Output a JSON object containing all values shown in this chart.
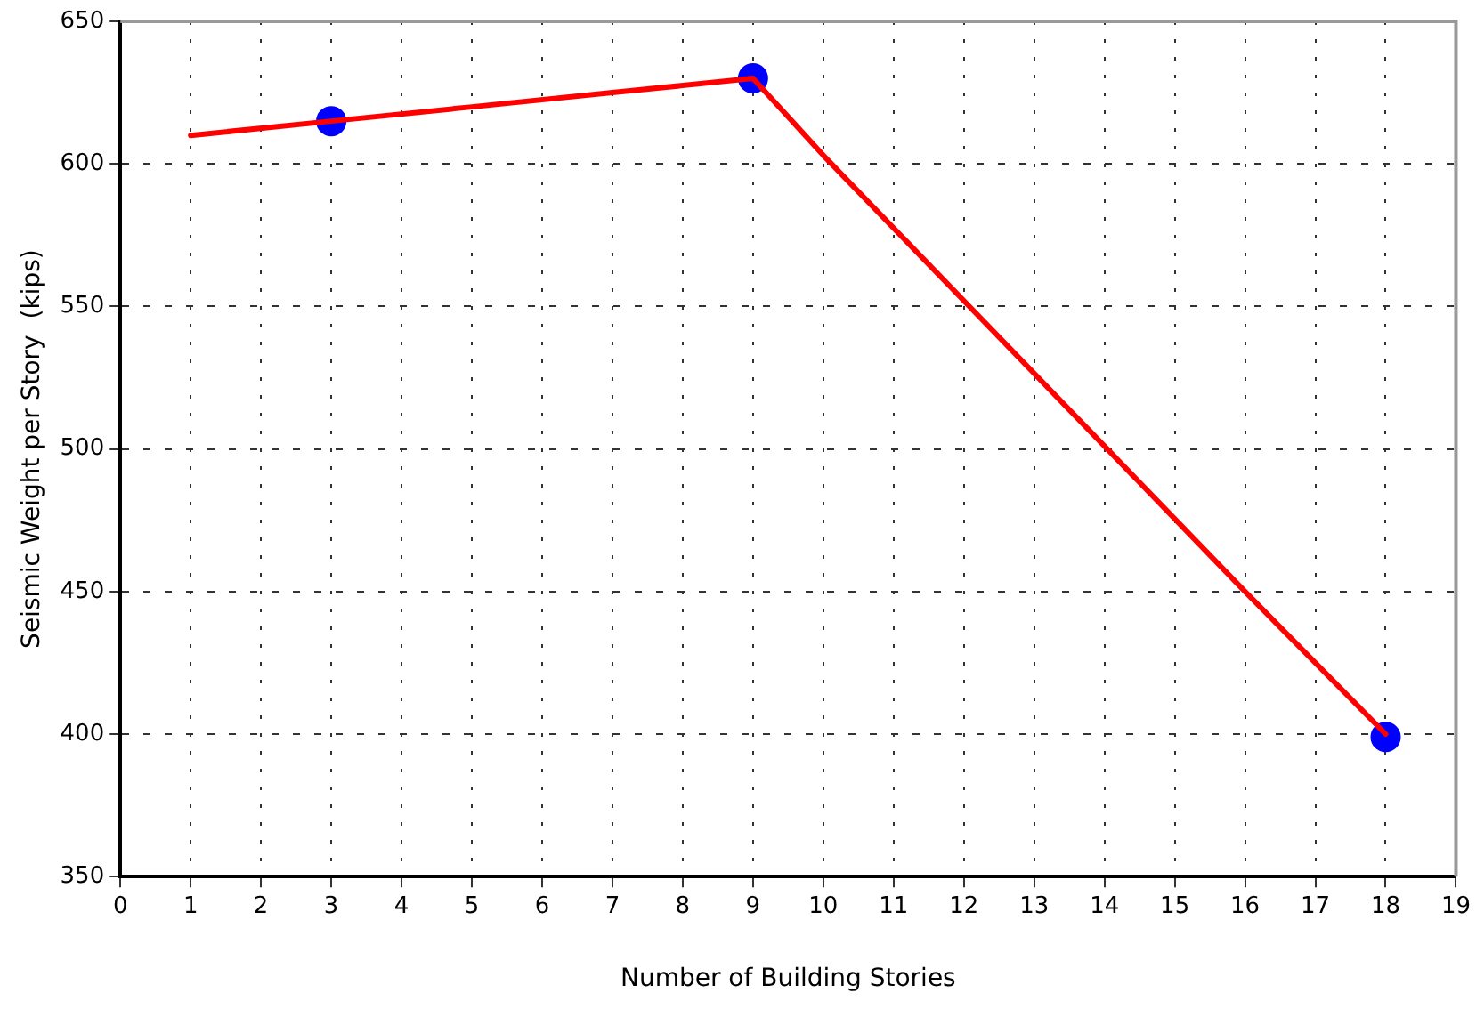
{
  "chart_data": {
    "type": "line",
    "xlabel": "Number of Building Stories",
    "ylabel": "Seismic Weight per Story  (kips)",
    "series": [
      {
        "type": "line",
        "color": "#ff0000",
        "marker": "none",
        "x": [
          1,
          3,
          5,
          7,
          9,
          10,
          12,
          14,
          16,
          18
        ],
        "values": [
          610,
          615,
          620,
          625,
          630,
          603,
          552,
          501,
          450,
          400
        ]
      },
      {
        "type": "scatter",
        "color": "#0000ff",
        "marker": "circle",
        "x": [
          3,
          9,
          18
        ],
        "values": [
          615,
          630,
          399
        ]
      }
    ],
    "xlim": [
      0,
      19
    ],
    "xticks": [
      0,
      1,
      2,
      3,
      4,
      5,
      6,
      7,
      8,
      9,
      10,
      11,
      12,
      13,
      14,
      15,
      16,
      17,
      18,
      19
    ],
    "ylim": [
      350,
      650
    ],
    "yticks": [
      350,
      400,
      450,
      500,
      550,
      600,
      650
    ],
    "grid": true,
    "legend": false
  }
}
